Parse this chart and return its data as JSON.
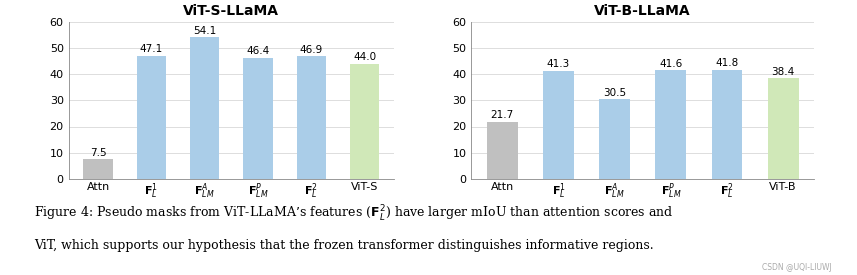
{
  "left_title": "ViT-S-LLaMA",
  "right_title": "ViT-B-LLaMA",
  "left_categories": [
    "Attn",
    "$\\mathbf{F}_L^1$",
    "$\\mathbf{F}_{LM}^A$",
    "$\\mathbf{F}_{LM}^P$",
    "$\\mathbf{F}_L^2$",
    "ViT-S"
  ],
  "right_categories": [
    "Attn",
    "$\\mathbf{F}_L^1$",
    "$\\mathbf{F}_{LM}^A$",
    "$\\mathbf{F}_{LM}^P$",
    "$\\mathbf{F}_L^2$",
    "ViT-B"
  ],
  "left_values": [
    7.5,
    47.1,
    54.1,
    46.4,
    46.9,
    44.0
  ],
  "right_values": [
    21.7,
    41.3,
    30.5,
    41.6,
    41.8,
    38.4
  ],
  "left_colors": [
    "#c0c0c0",
    "#aacde8",
    "#aacde8",
    "#aacde8",
    "#aacde8",
    "#d0e8b8"
  ],
  "right_colors": [
    "#c0c0c0",
    "#aacde8",
    "#aacde8",
    "#aacde8",
    "#aacde8",
    "#d0e8b8"
  ],
  "ylim": [
    0,
    60
  ],
  "yticks": [
    0,
    10,
    20,
    30,
    40,
    50,
    60
  ],
  "caption_line1": "Figure 4: Pseudo masks from ViT-LLaMA’s features ($\\mathbf{F}_L^2$) have larger mIoU than attention scores and",
  "caption_line2": "ViT, which supports our hypothesis that the frozen transformer distinguishes informative regions.",
  "watermark": "CSDN @UQI-LIUWJ",
  "background_color": "#ffffff",
  "bar_width": 0.55,
  "value_fontsize": 7.5,
  "tick_fontsize": 8.0,
  "title_fontsize": 10.0,
  "caption_fontsize": 9.0
}
